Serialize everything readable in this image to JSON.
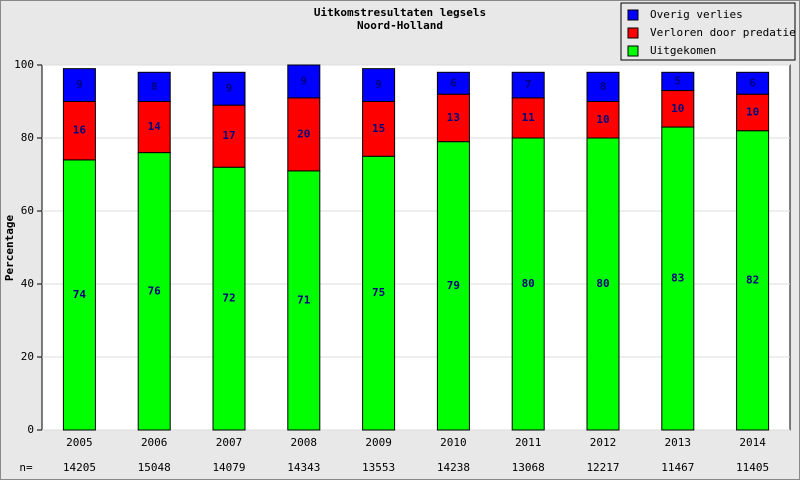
{
  "chart_data": {
    "type": "stacked-bar",
    "title": "Uitkomstresultaten legsels",
    "subtitle": "Noord-Holland",
    "y_label": "Percentage",
    "categories": [
      "2005",
      "2006",
      "2007",
      "2008",
      "2009",
      "2010",
      "2011",
      "2012",
      "2013",
      "2014"
    ],
    "series": [
      {
        "name": "Uitgekomen",
        "color": "#00ff00",
        "values": [
          74,
          76,
          72,
          71,
          75,
          79,
          80,
          80,
          83,
          82
        ]
      },
      {
        "name": "Verloren door predatie",
        "color": "#ff0000",
        "values": [
          16,
          14,
          17,
          20,
          15,
          13,
          11,
          10,
          10,
          10
        ]
      },
      {
        "name": "Overig verlies",
        "color": "#0000ff",
        "values": [
          9,
          8,
          9,
          9,
          9,
          6,
          7,
          8,
          5,
          6
        ]
      }
    ],
    "n_label": "n=",
    "n_values": [
      14205,
      15048,
      14079,
      14343,
      13553,
      14238,
      13068,
      12217,
      11467,
      11405
    ],
    "ylim": [
      0,
      100
    ],
    "yticks": [
      0,
      20,
      40,
      60,
      80,
      100
    ],
    "grid": true,
    "legend": "top-right"
  }
}
